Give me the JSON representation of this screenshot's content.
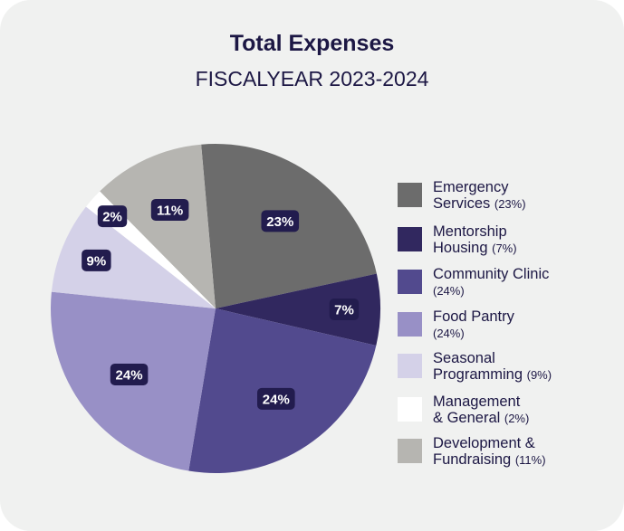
{
  "chart_data": {
    "type": "pie",
    "title": "Total Expenses",
    "subtitle": "FISCALYEAR 2023-2024",
    "slices": [
      {
        "label": "Emergency Services",
        "value": 23,
        "display": "23%",
        "legend_line1": "Emergency",
        "legend_line2": "Services",
        "legend_pct": "(23%)",
        "color": "#6c6c6c"
      },
      {
        "label": "Mentorship Housing",
        "value": 7,
        "display": "7%",
        "legend_line1": "Mentorship",
        "legend_line2": "Housing",
        "legend_pct": "(7%)",
        "color": "#31285f"
      },
      {
        "label": "Community Clinic",
        "value": 24,
        "display": "24%",
        "legend_line1": "Community Clinic",
        "legend_line2": "",
        "legend_pct": "(24%)",
        "color": "#524a8e"
      },
      {
        "label": "Food Pantry",
        "value": 24,
        "display": "24%",
        "legend_line1": "Food Pantry",
        "legend_line2": "",
        "legend_pct": "(24%)",
        "color": "#9890c6"
      },
      {
        "label": "Seasonal Programming",
        "value": 9,
        "display": "9%",
        "legend_line1": "Seasonal",
        "legend_line2": "Programming",
        "legend_pct": "(9%)",
        "color": "#d4d1e8"
      },
      {
        "label": "Management & General",
        "value": 2,
        "display": "2%",
        "legend_line1": "Management",
        "legend_line2": "& General",
        "legend_pct": "(2%)",
        "color": "#ffffff"
      },
      {
        "label": "Development & Fundraising",
        "value": 11,
        "display": "11%",
        "legend_line1": "Development &",
        "legend_line2": "Fundraising",
        "legend_pct": "(11%)",
        "color": "#b6b5b1"
      }
    ],
    "start_angle_deg": -5,
    "direction": "clockwise",
    "legend_position": "right",
    "label_background": "#221c4e"
  }
}
